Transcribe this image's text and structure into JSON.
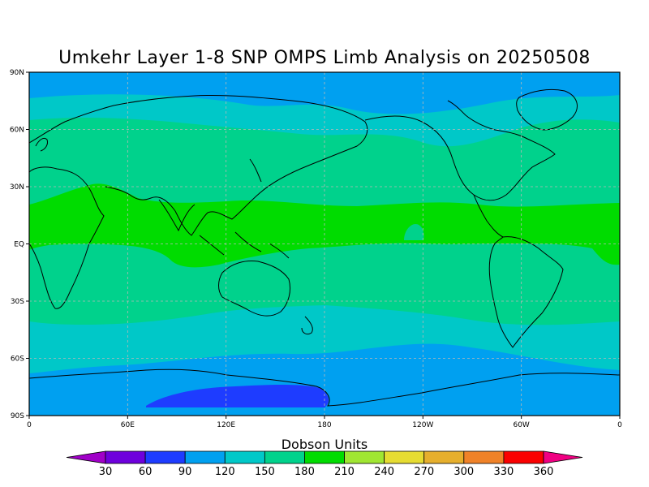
{
  "title": "Umkehr Layer 1-8 SNP OMPS Limb Analysis on 20250508",
  "map": {
    "lat_ticks": [
      "90N",
      "60N",
      "30N",
      "EQ",
      "30S",
      "60S",
      "90S"
    ],
    "lon_ticks": [
      "0",
      "60E",
      "120E",
      "180",
      "120W",
      "60W",
      "0"
    ],
    "lon_range": [
      0,
      360
    ],
    "lat_range": [
      -90,
      90
    ],
    "gridlines": true,
    "grid_color": "#b8b8b8",
    "coastline_color": "#000000"
  },
  "colorbar": {
    "title": "Dobson Units",
    "labels": [
      "30",
      "60",
      "90",
      "120",
      "150",
      "180",
      "210",
      "240",
      "270",
      "300",
      "330",
      "360"
    ],
    "colors": [
      "#a000c8",
      "#6e00dc",
      "#1e3cff",
      "#00a0f0",
      "#00c8c8",
      "#00d28c",
      "#00dc00",
      "#a0e632",
      "#e6dc32",
      "#e6af2d",
      "#f08228",
      "#fa0000",
      "#f00082"
    ]
  },
  "chart_data": {
    "type": "heatmap",
    "title": "Umkehr Layer 1-8 SNP OMPS Limb Analysis on 20250508",
    "units": "Dobson Units",
    "x_range": [
      0,
      360
    ],
    "y_range": [
      -90,
      90
    ],
    "levels": [
      30,
      60,
      90,
      120,
      150,
      180,
      210,
      240,
      270,
      300,
      330,
      360
    ],
    "zonal_band_fill": [
      {
        "lat": [
          80,
          90
        ],
        "range_DU": [
          90,
          120
        ]
      },
      {
        "lat": [
          65,
          80
        ],
        "range_DU": [
          120,
          150
        ]
      },
      {
        "lat": [
          30,
          65
        ],
        "range_DU": [
          150,
          180
        ]
      },
      {
        "lat": [
          -10,
          30
        ],
        "range_DU": [
          180,
          210
        ]
      },
      {
        "lat": [
          -35,
          -10
        ],
        "range_DU": [
          150,
          180
        ]
      },
      {
        "lat": [
          -55,
          -35
        ],
        "range_DU": [
          120,
          150
        ]
      },
      {
        "lat": [
          -75,
          -55
        ],
        "range_DU": [
          90,
          120
        ]
      },
      {
        "lat": [
          -90,
          -75
        ],
        "range_DU": [
          60,
          90
        ]
      }
    ]
  }
}
